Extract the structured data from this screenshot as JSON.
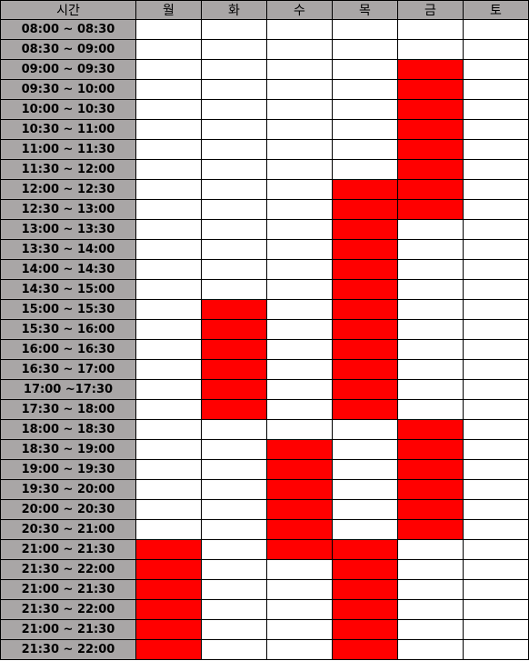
{
  "header": {
    "time_label": "시간",
    "days": [
      "월",
      "화",
      "수",
      "목",
      "금",
      "토"
    ]
  },
  "colors": {
    "header_bg": "#a9a6a6",
    "busy": "#ff0000",
    "free": "#ffffff",
    "grid_line": "#000000"
  },
  "rows": [
    {
      "time": "08:00 ~ 08:30",
      "busy": [
        0,
        0,
        0,
        0,
        0,
        0
      ]
    },
    {
      "time": "08:30 ~ 09:00",
      "busy": [
        0,
        0,
        0,
        0,
        0,
        0
      ]
    },
    {
      "time": "09:00 ~ 09:30",
      "busy": [
        0,
        0,
        0,
        0,
        1,
        0
      ]
    },
    {
      "time": "09:30 ~ 10:00",
      "busy": [
        0,
        0,
        0,
        0,
        1,
        0
      ]
    },
    {
      "time": "10:00 ~ 10:30",
      "busy": [
        0,
        0,
        0,
        0,
        1,
        0
      ]
    },
    {
      "time": "10:30 ~ 11:00",
      "busy": [
        0,
        0,
        0,
        0,
        1,
        0
      ]
    },
    {
      "time": "11:00 ~ 11:30",
      "busy": [
        0,
        0,
        0,
        0,
        1,
        0
      ]
    },
    {
      "time": "11:30 ~ 12:00",
      "busy": [
        0,
        0,
        0,
        0,
        1,
        0
      ]
    },
    {
      "time": "12:00 ~ 12:30",
      "busy": [
        0,
        0,
        0,
        1,
        1,
        0
      ]
    },
    {
      "time": "12:30 ~ 13:00",
      "busy": [
        0,
        0,
        0,
        1,
        1,
        0
      ]
    },
    {
      "time": "13:00 ~ 13:30",
      "busy": [
        0,
        0,
        0,
        1,
        0,
        0
      ]
    },
    {
      "time": "13:30 ~ 14:00",
      "busy": [
        0,
        0,
        0,
        1,
        0,
        0
      ]
    },
    {
      "time": "14:00 ~ 14:30",
      "busy": [
        0,
        0,
        0,
        1,
        0,
        0
      ]
    },
    {
      "time": "14:30 ~ 15:00",
      "busy": [
        0,
        0,
        0,
        1,
        0,
        0
      ]
    },
    {
      "time": "15:00 ~ 15:30",
      "busy": [
        0,
        1,
        0,
        1,
        0,
        0
      ]
    },
    {
      "time": "15:30 ~ 16:00",
      "busy": [
        0,
        1,
        0,
        1,
        0,
        0
      ]
    },
    {
      "time": "16:00 ~ 16:30",
      "busy": [
        0,
        1,
        0,
        1,
        0,
        0
      ]
    },
    {
      "time": "16:30 ~ 17:00",
      "busy": [
        0,
        1,
        0,
        1,
        0,
        0
      ]
    },
    {
      "time": "17:00 ~17:30",
      "busy": [
        0,
        1,
        0,
        1,
        0,
        0
      ]
    },
    {
      "time": "17:30 ~ 18:00",
      "busy": [
        0,
        1,
        0,
        1,
        0,
        0
      ]
    },
    {
      "time": "18:00 ~ 18:30",
      "busy": [
        0,
        0,
        0,
        0,
        1,
        0
      ]
    },
    {
      "time": "18:30 ~ 19:00",
      "busy": [
        0,
        0,
        1,
        0,
        1,
        0
      ]
    },
    {
      "time": "19:00 ~ 19:30",
      "busy": [
        0,
        0,
        1,
        0,
        1,
        0
      ]
    },
    {
      "time": "19:30 ~ 20:00",
      "busy": [
        0,
        0,
        1,
        0,
        1,
        0
      ]
    },
    {
      "time": "20:00 ~ 20:30",
      "busy": [
        0,
        0,
        1,
        0,
        1,
        0
      ]
    },
    {
      "time": "20:30 ~ 21:00",
      "busy": [
        0,
        0,
        1,
        0,
        1,
        0
      ]
    },
    {
      "time": "21:00 ~ 21:30",
      "busy": [
        1,
        0,
        1,
        1,
        0,
        0
      ]
    },
    {
      "time": "21:30 ~ 22:00",
      "busy": [
        1,
        0,
        0,
        1,
        0,
        0
      ]
    },
    {
      "time": "21:00 ~ 21:30",
      "busy": [
        1,
        0,
        0,
        1,
        0,
        0
      ]
    },
    {
      "time": "21:30 ~ 22:00",
      "busy": [
        1,
        0,
        0,
        1,
        0,
        0
      ]
    },
    {
      "time": "21:00 ~ 21:30",
      "busy": [
        1,
        0,
        0,
        1,
        0,
        0
      ]
    },
    {
      "time": "21:30 ~ 22:00",
      "busy": [
        1,
        0,
        0,
        1,
        0,
        0
      ]
    }
  ]
}
